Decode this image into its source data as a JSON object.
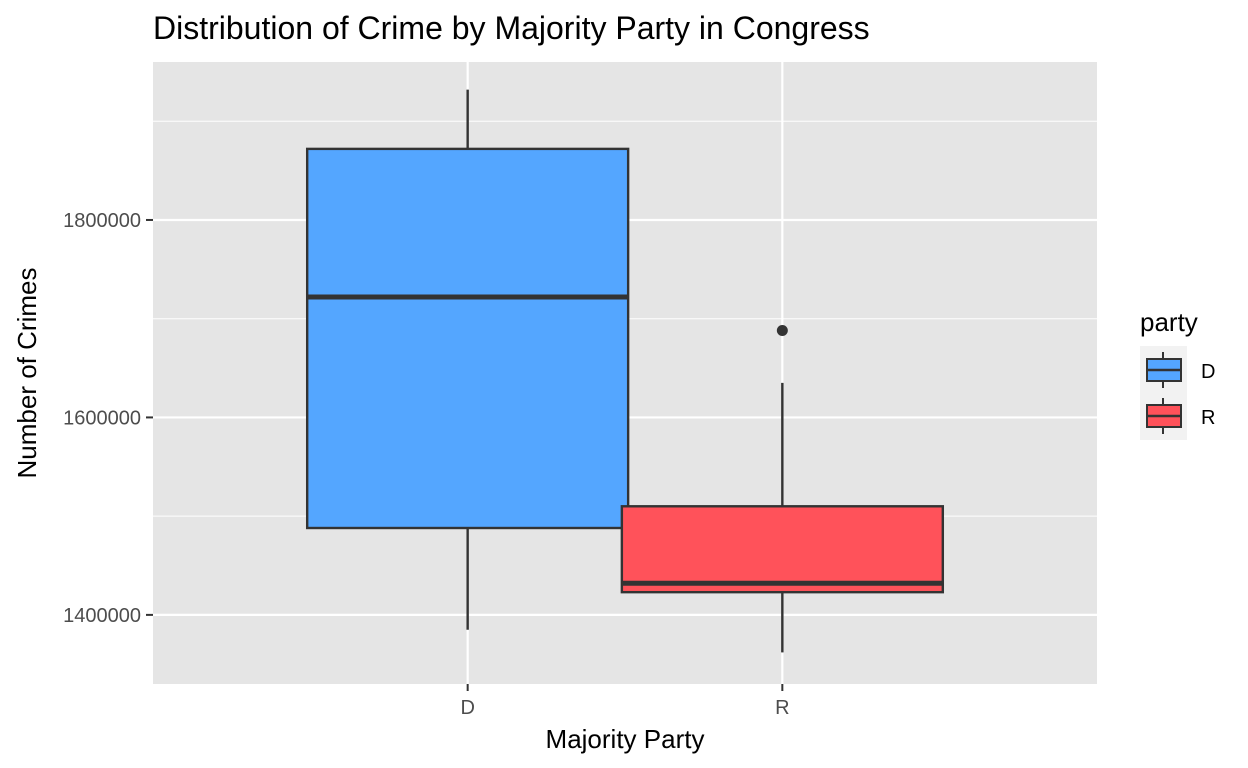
{
  "chart_data": {
    "type": "boxplot",
    "title": "Distribution of Crime by Majority Party in Congress",
    "xlabel": "Majority Party",
    "ylabel": "Number of Crimes",
    "categories": [
      "D",
      "R"
    ],
    "y_ticks": [
      1400000,
      1600000,
      1800000
    ],
    "y_tick_labels": [
      "1400000",
      "1600000",
      "1800000"
    ],
    "ylim": [
      1330000,
      1960000
    ],
    "grid": true,
    "legend": {
      "title": "party",
      "position": "right",
      "entries": [
        "D",
        "R"
      ]
    },
    "colors": {
      "D": "#54a6ff",
      "R": "#ff525a"
    },
    "boxes": [
      {
        "category": "D",
        "min": 1385000,
        "q1": 1488000,
        "median": 1722000,
        "q3": 1872000,
        "max": 1932000,
        "outliers": []
      },
      {
        "category": "R",
        "min": 1362000,
        "q1": 1423000,
        "median": 1432000,
        "q3": 1510000,
        "max": 1635000,
        "outliers": [
          1688000
        ]
      }
    ]
  }
}
